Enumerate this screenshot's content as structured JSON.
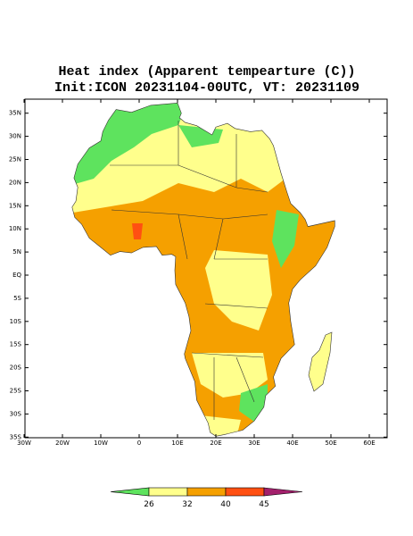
{
  "title": "Heat index (Apparent tempearture (C))",
  "subtitle": "Init:ICON 20231104-00UTC, VT: 20231109",
  "map": {
    "lat_ticks": [
      {
        "value": 35,
        "label": "35N"
      },
      {
        "value": 30,
        "label": "30N"
      },
      {
        "value": 25,
        "label": "25N"
      },
      {
        "value": 20,
        "label": "20N"
      },
      {
        "value": 15,
        "label": "15N"
      },
      {
        "value": 10,
        "label": "10N"
      },
      {
        "value": 5,
        "label": "5N"
      },
      {
        "value": 0,
        "label": "EQ"
      },
      {
        "value": -5,
        "label": "5S"
      },
      {
        "value": -10,
        "label": "10S"
      },
      {
        "value": -15,
        "label": "15S"
      },
      {
        "value": -20,
        "label": "20S"
      },
      {
        "value": -25,
        "label": "25S"
      },
      {
        "value": -30,
        "label": "30S"
      },
      {
        "value": -35,
        "label": "35S"
      }
    ],
    "lon_ticks": [
      {
        "value": -30,
        "label": "30W"
      },
      {
        "value": -20,
        "label": "20W"
      },
      {
        "value": -10,
        "label": "10W"
      },
      {
        "value": 0,
        "label": "0"
      },
      {
        "value": 10,
        "label": "10E"
      },
      {
        "value": 20,
        "label": "20E"
      },
      {
        "value": 30,
        "label": "30E"
      },
      {
        "value": 40,
        "label": "40E"
      },
      {
        "value": 50,
        "label": "50E"
      },
      {
        "value": 60,
        "label": "60E"
      }
    ]
  },
  "colorbar": {
    "levels": [
      26,
      32,
      40,
      45
    ],
    "colors": [
      "#5ee35e",
      "#ffff8c",
      "#f5a000",
      "#ff5012",
      "#a3206c"
    ]
  }
}
